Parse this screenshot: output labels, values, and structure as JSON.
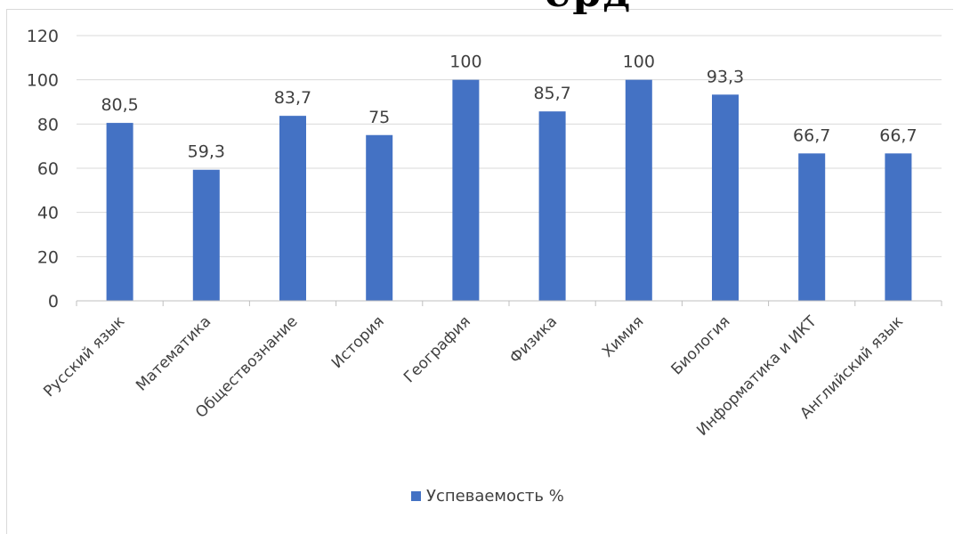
{
  "top_fragment": "ерд",
  "chart_data": {
    "type": "bar",
    "categories": [
      "Русский язык",
      "Математика",
      "Обществознание",
      "История",
      "География",
      "Физика",
      "Химия",
      "Биология",
      "Информатика и ИКТ",
      "Английский язык"
    ],
    "series": [
      {
        "name": "Успеваемость %",
        "values": [
          80.5,
          59.3,
          83.7,
          75,
          100,
          85.7,
          100,
          93.3,
          66.7,
          66.7
        ],
        "data_labels": [
          "80,5",
          "59,3",
          "83,7",
          "75",
          "100",
          "85,7",
          "100",
          "93,3",
          "66,7",
          "66,7"
        ],
        "color": "#4472c4"
      }
    ],
    "y_ticks": [
      "0",
      "20",
      "40",
      "60",
      "80",
      "100",
      "120"
    ],
    "ylim": [
      0,
      120
    ],
    "grid": true,
    "legend_position": "bottom",
    "gridline_color": "#d9d9d9",
    "text_color": "#404040"
  }
}
